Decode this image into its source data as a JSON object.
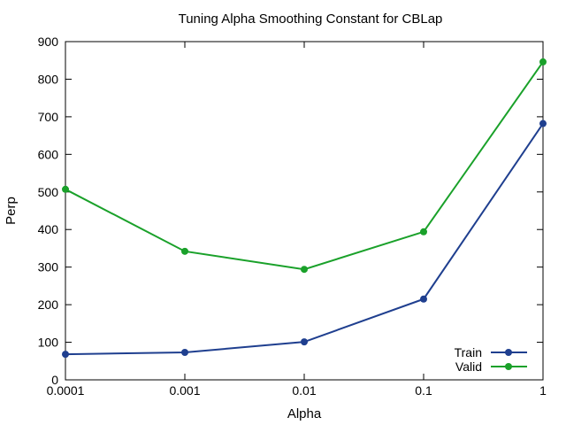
{
  "chart_data": {
    "type": "line",
    "title": "Tuning Alpha Smoothing Constant for CBLap",
    "xlabel": "Alpha",
    "ylabel": "Perp",
    "x_scale": "log",
    "x": [
      0.0001,
      0.001,
      0.01,
      0.1,
      1
    ],
    "x_tick_labels": [
      "0.0001",
      "0.001",
      "0.01",
      "0.1",
      "1"
    ],
    "ylim": [
      0,
      900
    ],
    "y_ticks": [
      0,
      100,
      200,
      300,
      400,
      500,
      600,
      700,
      800,
      900
    ],
    "grid": false,
    "legend_position": "bottom-right",
    "series": [
      {
        "name": "Train",
        "color": "#1f3f8f",
        "values": [
          68,
          73,
          101,
          215,
          682
        ]
      },
      {
        "name": "Valid",
        "color": "#1aa12a",
        "values": [
          507,
          342,
          294,
          394,
          846
        ]
      }
    ]
  }
}
